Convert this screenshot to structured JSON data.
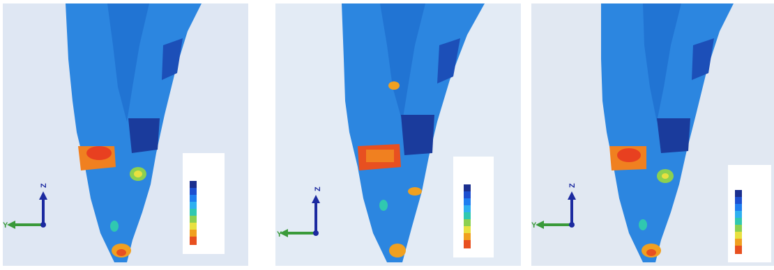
{
  "panels": [
    {
      "axes": {
        "vertical": "Z",
        "horizontal": "Y"
      },
      "legend": {
        "colors": [
          "#1b2f8f",
          "#1d4fd0",
          "#1f7ef0",
          "#2fb0f0",
          "#30c8b0",
          "#8cd050",
          "#e8e040",
          "#f0a020",
          "#e85020"
        ]
      }
    },
    {
      "axes": {
        "vertical": "Z",
        "horizontal": "Y"
      },
      "legend": {
        "colors": [
          "#1b2f8f",
          "#1d4fd0",
          "#1f7ef0",
          "#2fb0f0",
          "#30c8b0",
          "#8cd050",
          "#e8e040",
          "#f0a020",
          "#e85020"
        ]
      }
    },
    {
      "axes": {
        "vertical": "Z",
        "horizontal": "Y"
      },
      "legend": {
        "colors": [
          "#1b2f8f",
          "#1d4fd0",
          "#1f7ef0",
          "#2fb0f0",
          "#30c8b0",
          "#8cd050",
          "#e8e040",
          "#f0a020",
          "#e85020"
        ]
      }
    }
  ]
}
